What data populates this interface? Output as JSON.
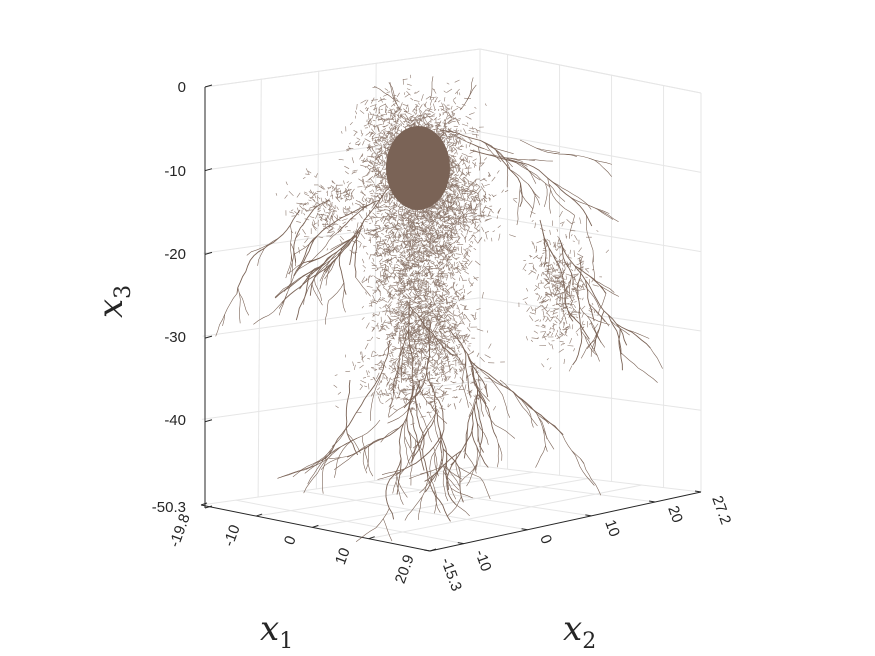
{
  "chart_data": {
    "type": "scatter",
    "subtype": "3d-root-system",
    "title": "",
    "axes": {
      "x1": {
        "label": "x",
        "label_subscript": "1",
        "range": [
          -19.8,
          20.9
        ],
        "ticks": [
          "-19.8",
          "-10",
          "0",
          "10",
          "20.9"
        ]
      },
      "x2": {
        "label": "x",
        "label_subscript": "2",
        "range": [
          -15.3,
          27.2
        ],
        "ticks": [
          "-15.3",
          "-10",
          "0",
          "10",
          "20",
          "27.2"
        ]
      },
      "x3": {
        "label": "x",
        "label_subscript": "3",
        "range": [
          -50.3,
          0
        ],
        "ticks": [
          "-50.3",
          "-40",
          "-30",
          "-20",
          "-10",
          "0"
        ]
      }
    },
    "grid": true,
    "legend": "none",
    "colors": {
      "roots": "#7a6356",
      "grid": "#e6e6e6",
      "axis": "#262626"
    },
    "point_clusters": [
      {
        "x1": 0,
        "x2": 0,
        "x3": -10,
        "spread": [
          3,
          3,
          4
        ],
        "note": "dense core"
      },
      {
        "x1": 0,
        "x2": 2,
        "x3": -22,
        "spread": [
          4,
          4,
          8
        ]
      },
      {
        "x1": 2,
        "x2": 5,
        "x3": -35,
        "spread": [
          5,
          5,
          6
        ]
      },
      {
        "x1": -10,
        "x2": -5,
        "x3": -18,
        "spread": [
          4,
          4,
          6
        ]
      },
      {
        "x1": 8,
        "x2": 18,
        "x3": -26,
        "spread": [
          3,
          4,
          8
        ]
      }
    ]
  }
}
